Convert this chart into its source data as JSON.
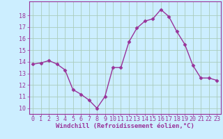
{
  "x": [
    0,
    1,
    2,
    3,
    4,
    5,
    6,
    7,
    8,
    9,
    10,
    11,
    12,
    13,
    14,
    15,
    16,
    17,
    18,
    19,
    20,
    21,
    22,
    23
  ],
  "y": [
    13.8,
    13.9,
    14.1,
    13.8,
    13.3,
    11.6,
    11.2,
    10.7,
    10.0,
    11.0,
    13.5,
    13.5,
    15.7,
    16.9,
    17.5,
    17.7,
    18.5,
    17.9,
    16.6,
    15.5,
    13.7,
    12.6,
    12.6,
    12.4
  ],
  "line_color": "#993399",
  "marker": "D",
  "marker_size": 2.5,
  "bg_color": "#cceeff",
  "grid_color": "#aaccbb",
  "xlabel": "Windchill (Refroidissement éolien,°C)",
  "ylim": [
    9.5,
    19.2
  ],
  "xlim": [
    -0.5,
    23.5
  ],
  "yticks": [
    10,
    11,
    12,
    13,
    14,
    15,
    16,
    17,
    18
  ],
  "xticks": [
    0,
    1,
    2,
    3,
    4,
    5,
    6,
    7,
    8,
    9,
    10,
    11,
    12,
    13,
    14,
    15,
    16,
    17,
    18,
    19,
    20,
    21,
    22,
    23
  ],
  "tick_color": "#993399",
  "label_color": "#993399",
  "xlabel_fontsize": 6.5,
  "tick_fontsize": 6.0,
  "spine_color": "#993399",
  "line_width": 1.0
}
